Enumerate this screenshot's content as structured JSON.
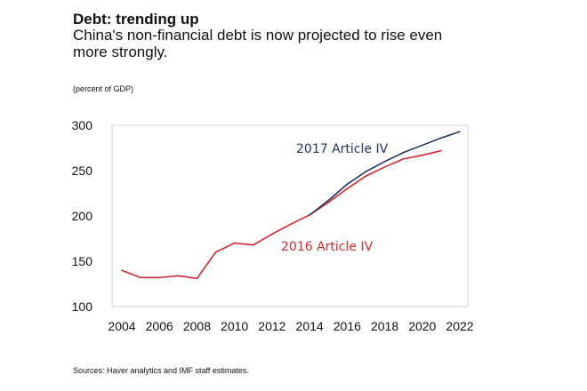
{
  "chart_data": {
    "type": "line",
    "title": "Debt: trending up",
    "subtitle": "China's non-financial debt is now projected to rise even more strongly.",
    "ylabel": "(percent of GDP)",
    "source": "Sources: Haver analytics and IMF staff estimates.",
    "ylim": [
      100,
      300
    ],
    "xlim": [
      2004,
      2022
    ],
    "yticks": [
      "100",
      "150",
      "200",
      "250",
      "300"
    ],
    "xticks": [
      "2004",
      "2006",
      "2008",
      "2010",
      "2012",
      "2014",
      "2016",
      "2018",
      "2020",
      "2022"
    ],
    "series": [
      {
        "name": "2016 Article IV",
        "color": "#d9262e",
        "x": [
          2004,
          2005,
          2006,
          2007,
          2008,
          2009,
          2010,
          2011,
          2012,
          2013,
          2014,
          2015,
          2016,
          2017,
          2018,
          2019,
          2020,
          2021
        ],
        "values": [
          140,
          132,
          132,
          134,
          131,
          160,
          170,
          168,
          180,
          191,
          201,
          215,
          230,
          244,
          254,
          263,
          267,
          272
        ]
      },
      {
        "name": "2017 Article IV",
        "color": "#1f3564",
        "x": [
          2014,
          2015,
          2016,
          2017,
          2018,
          2019,
          2020,
          2021,
          2022
        ],
        "values": [
          201,
          217,
          235,
          249,
          260,
          270,
          278,
          286,
          293
        ]
      }
    ]
  }
}
